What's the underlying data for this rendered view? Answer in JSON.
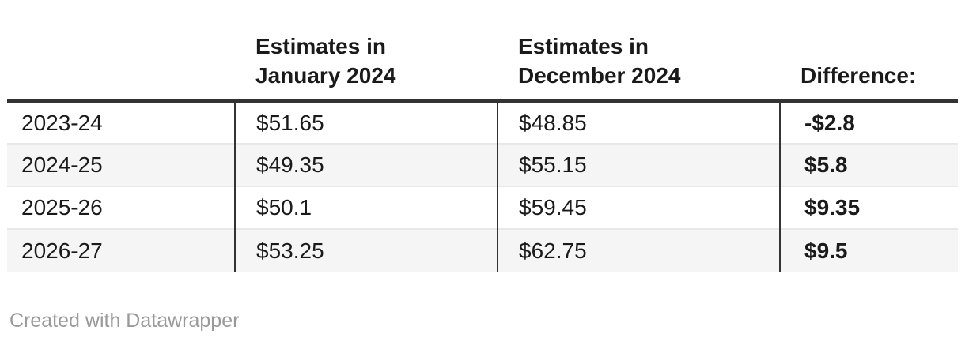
{
  "colors": {
    "header_rule": "#333333",
    "column_divider": "#333333",
    "row_divider": "#e8e8e8",
    "stripe": "#f5f5f5",
    "text": "#1a1a1a",
    "footer_text": "#999999"
  },
  "table": {
    "header": {
      "year": "",
      "jan": [
        "Estimates in",
        "January 2024"
      ],
      "dec": [
        "Estimates in",
        "December 2024"
      ],
      "diff": "Difference:"
    }
  },
  "chart_data": {
    "type": "table",
    "columns": [
      "",
      "Estimates in January 2024",
      "Estimates in December 2024",
      "Difference:"
    ],
    "rows": [
      [
        "2023-24",
        "$51.65",
        "$48.85",
        "-$2.8"
      ],
      [
        "2024-25",
        "$49.35",
        "$55.15",
        "$5.8"
      ],
      [
        "2025-26",
        "$50.1",
        "$59.45",
        "$9.35"
      ],
      [
        "2026-27",
        "$53.25",
        "$62.75",
        "$9.5"
      ]
    ],
    "numeric": {
      "categories": [
        "2023-24",
        "2024-25",
        "2025-26",
        "2026-27"
      ],
      "estimates_january_2024": [
        51.65,
        49.35,
        50.1,
        53.25
      ],
      "estimates_december_2024": [
        48.85,
        55.15,
        59.45,
        62.75
      ],
      "difference": [
        -2.8,
        5.8,
        9.35,
        9.5
      ]
    },
    "layout": {
      "striped_rows": true,
      "bold_last_column": true,
      "header_alignment": "bottom-left"
    }
  },
  "footer": {
    "credit": "Created with Datawrapper"
  }
}
